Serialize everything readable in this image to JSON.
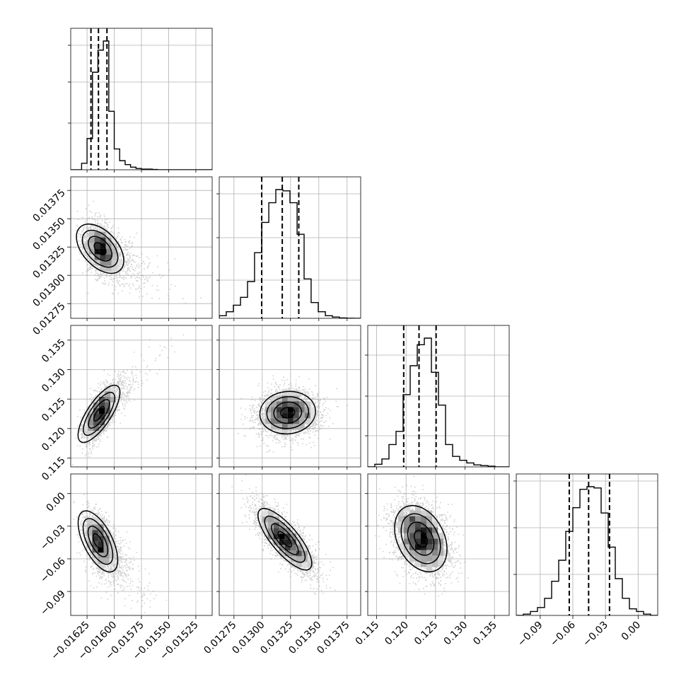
{
  "chart_data": {
    "type": "corner",
    "parameters": [
      {
        "range": [
          -0.0164,
          -0.0151
        ],
        "ticks": [
          -0.01625,
          -0.016,
          -0.01575,
          -0.0155,
          -0.01525
        ],
        "tick_labels": [
          "−0.01625",
          "−0.01600",
          "−0.01575",
          "−0.01550",
          "−0.01525"
        ]
      },
      {
        "range": [
          0.01262,
          0.01387
        ],
        "ticks": [
          0.01275,
          0.013,
          0.01325,
          0.0135,
          0.01375
        ],
        "tick_labels": [
          "0.01275",
          "0.01300",
          "0.01325",
          "0.01350",
          "0.01375"
        ]
      },
      {
        "range": [
          0.1135,
          0.1375
        ],
        "ticks": [
          0.115,
          0.12,
          0.125,
          0.13,
          0.135
        ],
        "tick_labels": [
          "0.115",
          "0.120",
          "0.125",
          "0.130",
          "0.135"
        ]
      },
      {
        "range": [
          -0.112,
          0.018
        ],
        "ticks": [
          -0.09,
          -0.06,
          -0.03,
          0.0
        ],
        "tick_labels": [
          "−0.09",
          "−0.06",
          "−0.03",
          "0.00"
        ]
      }
    ],
    "histograms": [
      {
        "param": 0,
        "quantiles": [
          -0.016214,
          -0.016145,
          -0.016067
        ],
        "bins": [
          -0.0164,
          -0.01635,
          -0.0163,
          -0.01625,
          -0.0162,
          -0.01615,
          -0.0161,
          -0.01605,
          -0.016,
          -0.01595,
          -0.0159,
          -0.01585,
          -0.0158,
          -0.01575,
          -0.0157,
          -0.01565,
          -0.0156,
          -0.01555,
          -0.0155,
          -0.01545,
          -0.0154,
          -0.01535,
          -0.0153,
          -0.01525,
          -0.0152,
          -0.01515,
          -0.0151
        ],
        "counts": [
          0,
          0,
          0.05,
          0.24,
          0.75,
          0.92,
          0.99,
          0.45,
          0.16,
          0.07,
          0.04,
          0.02,
          0.01,
          0.005,
          0.005,
          0.002,
          0,
          0,
          0,
          0,
          0,
          0,
          0,
          0,
          0,
          0
        ]
      },
      {
        "param": 1,
        "quantiles": [
          0.012995,
          0.013177,
          0.013323
        ],
        "bins": [
          0.01262,
          0.012682,
          0.012745,
          0.012808,
          0.01287,
          0.012932,
          0.012995,
          0.013058,
          0.01312,
          0.013182,
          0.013245,
          0.013308,
          0.01337,
          0.013432,
          0.013495,
          0.013558,
          0.01362,
          0.013682,
          0.013745,
          0.013808,
          0.01387
        ],
        "counts": [
          0.02,
          0.05,
          0.1,
          0.16,
          0.28,
          0.5,
          0.73,
          0.88,
          0.98,
          0.97,
          0.88,
          0.64,
          0.3,
          0.12,
          0.05,
          0.02,
          0.01,
          0.003,
          0.001,
          0
        ]
      },
      {
        "param": 2,
        "quantiles": [
          0.1196,
          0.1222,
          0.1251
        ],
        "bins": [
          0.1135,
          0.1147,
          0.1159,
          0.1171,
          0.1183,
          0.1195,
          0.1207,
          0.1219,
          0.1231,
          0.1243,
          0.1255,
          0.1267,
          0.1279,
          0.1291,
          0.1303,
          0.1315,
          0.1327,
          0.1339,
          0.1351,
          0.1363,
          0.1375
        ],
        "counts": [
          0,
          0.02,
          0.06,
          0.17,
          0.27,
          0.55,
          0.77,
          0.93,
          0.98,
          0.72,
          0.47,
          0.17,
          0.08,
          0.05,
          0.03,
          0.015,
          0.01,
          0.005,
          0,
          0
        ]
      },
      {
        "param": 3,
        "quantiles": [
          -0.0633,
          -0.0455,
          -0.0263
        ],
        "bins": [
          -0.112,
          -0.1055,
          -0.099,
          -0.0925,
          -0.086,
          -0.0795,
          -0.073,
          -0.0665,
          -0.06,
          -0.0535,
          -0.047,
          -0.0405,
          -0.034,
          -0.0275,
          -0.021,
          -0.0145,
          -0.008,
          -0.0015,
          0.005,
          0.0115,
          0.018
        ],
        "counts": [
          0,
          0.01,
          0.03,
          0.06,
          0.13,
          0.26,
          0.42,
          0.64,
          0.82,
          0.96,
          0.98,
          0.97,
          0.78,
          0.52,
          0.28,
          0.13,
          0.05,
          0.03,
          0.01,
          0
        ]
      }
    ],
    "pairs": [
      {
        "x": 0,
        "y": 1,
        "mean": [
          -0.01613,
          0.013235
        ],
        "sd": [
          7.5e-05,
          0.00011
        ],
        "rho": -0.3,
        "tail": {
          "dir": [
            1,
            -0.35
          ],
          "weight": 0.35
        }
      },
      {
        "x": 0,
        "y": 2,
        "mean": [
          -0.01614,
          0.1225
        ],
        "sd": [
          7e-05,
          0.0022
        ],
        "rho": 0.6,
        "tail": {
          "dir": [
            1,
            0.6
          ],
          "weight": 0.3
        }
      },
      {
        "x": 1,
        "y": 2,
        "mean": [
          0.013225,
          0.1227
        ],
        "sd": [
          0.000135,
          0.002
        ],
        "rho": 0.05,
        "tail": null
      },
      {
        "x": 0,
        "y": 3,
        "mean": [
          -0.01615,
          -0.044
        ],
        "sd": [
          6.5e-05,
          0.0135
        ],
        "rho": -0.4,
        "tail": {
          "dir": [
            1,
            -0.5
          ],
          "weight": 0.35
        }
      },
      {
        "x": 1,
        "y": 3,
        "mean": [
          0.0132,
          -0.042
        ],
        "sd": [
          0.00013,
          0.016
        ],
        "rho": -0.78,
        "tail": null
      },
      {
        "x": 2,
        "y": 3,
        "mean": [
          0.1225,
          -0.0415
        ],
        "sd": [
          0.0025,
          0.017
        ],
        "rho": -0.35,
        "tail": null
      }
    ],
    "hist_ticks": {
      "0": [
        0.33,
        0.62,
        0.88
      ],
      "1": [
        0.27,
        0.57,
        0.88
      ],
      "2": [
        0.22,
        0.5,
        0.79
      ],
      "3": [
        0.29,
        0.62,
        0.95
      ]
    },
    "grid": true,
    "colors": {
      "line": "#000000",
      "grid": "#b0b0b0",
      "scatter": "#9a9a9a"
    }
  }
}
